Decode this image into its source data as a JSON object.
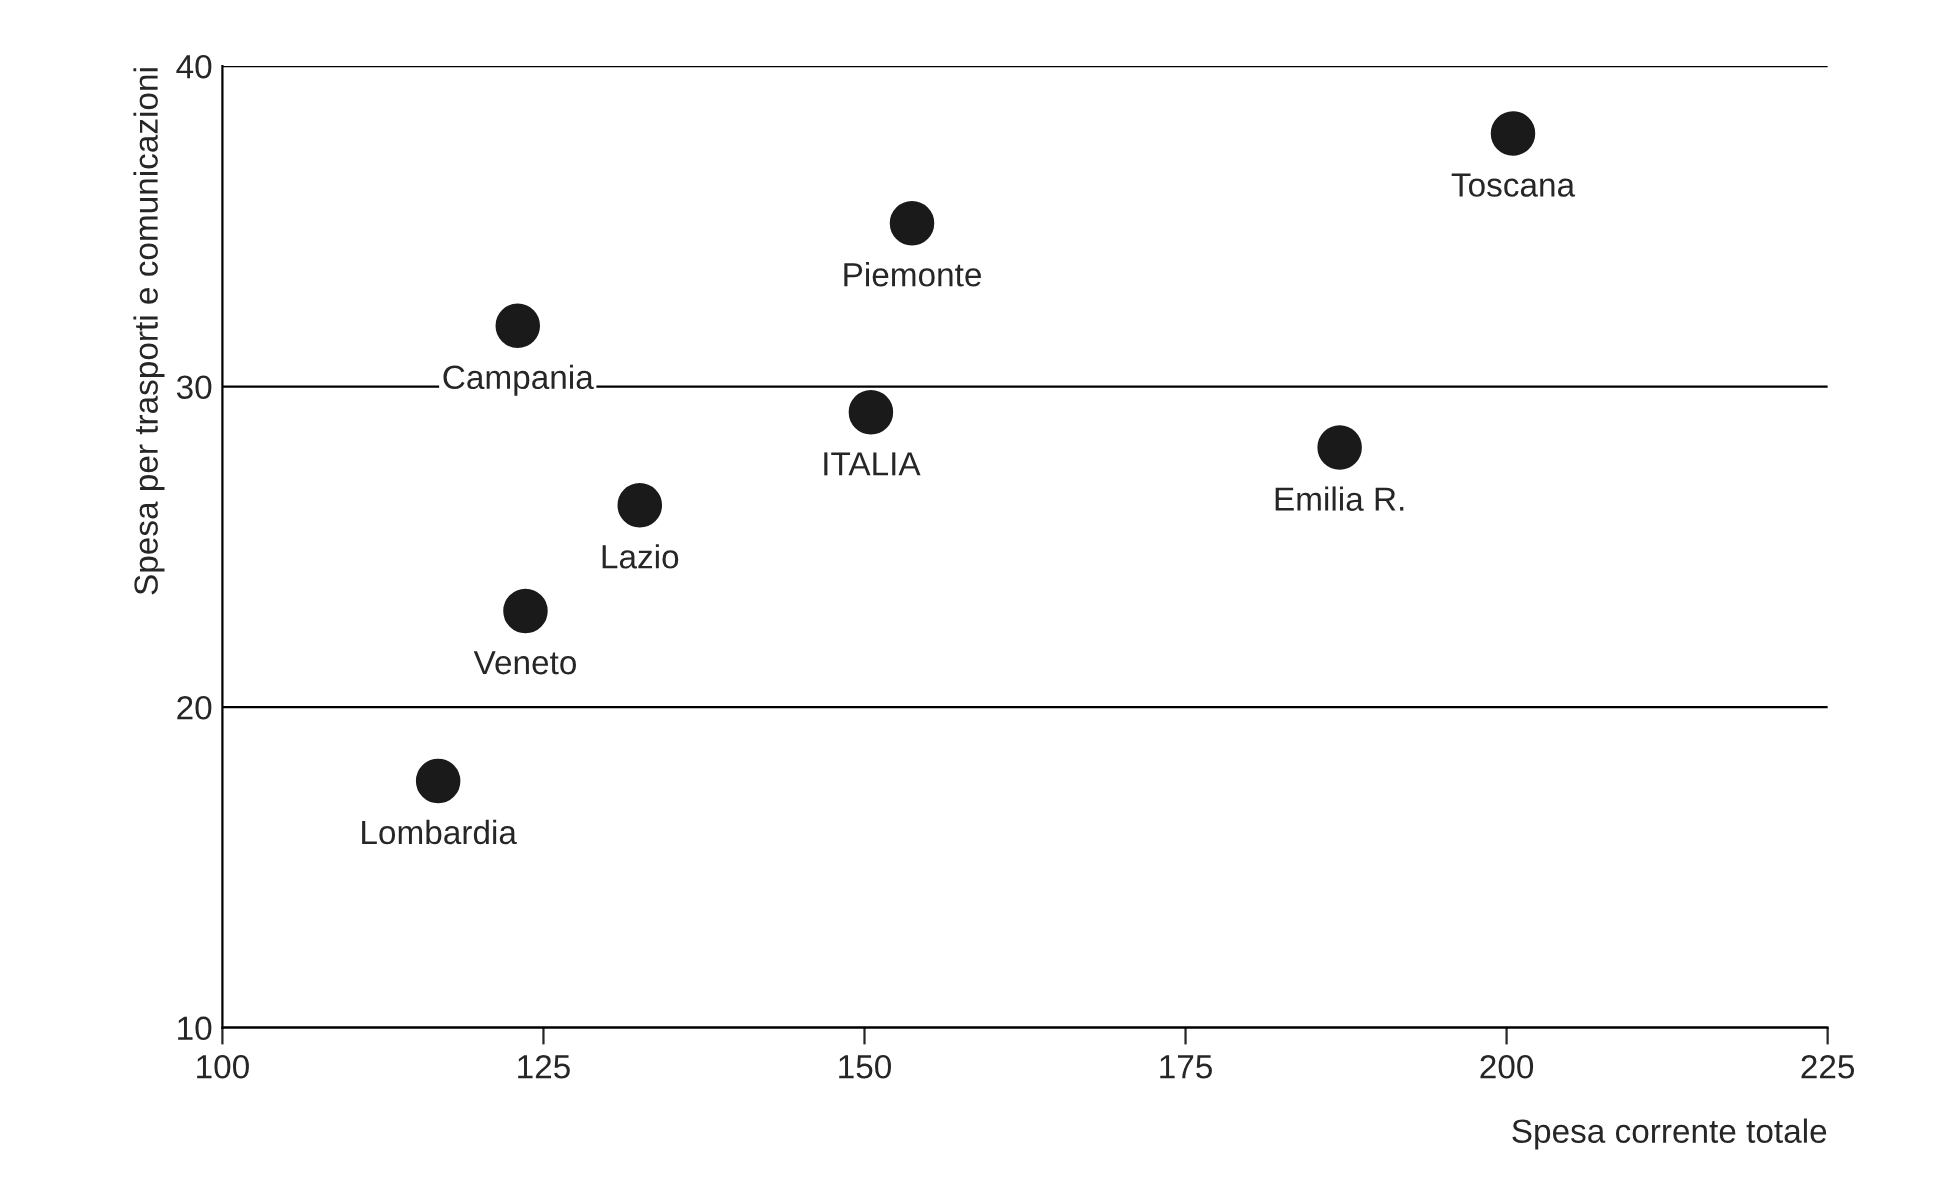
{
  "chart_data": {
    "type": "scatter",
    "xlabel": "Spesa corrente totale",
    "ylabel": "Spesa per trasporti e comunicazioni",
    "x": [
      200.5,
      153.7,
      123.0,
      150.5,
      187.0,
      132.5,
      123.6,
      116.8
    ],
    "series": [
      {
        "color": "#1a1a1a",
        "values": [
          37.9,
          35.1,
          31.9,
          29.2,
          28.1,
          26.3,
          23.0,
          17.7
        ]
      }
    ],
    "annotations": [
      {
        "text": "Toscana",
        "x": 200.5,
        "y": 37.9
      },
      {
        "text": "Piemonte",
        "x": 153.7,
        "y": 35.1
      },
      {
        "text": "Campania",
        "x": 123.0,
        "y": 31.9
      },
      {
        "text": "ITALIA",
        "x": 150.5,
        "y": 29.2
      },
      {
        "text": "Emilia R.",
        "x": 187.0,
        "y": 28.1
      },
      {
        "text": "Lazio",
        "x": 132.5,
        "y": 26.3
      },
      {
        "text": "Veneto",
        "x": 123.6,
        "y": 23.0
      },
      {
        "text": "Lombardia",
        "x": 116.8,
        "y": 17.7
      }
    ],
    "xlim": [
      100,
      225
    ],
    "xticks": [
      100,
      125,
      150,
      175,
      200,
      225
    ],
    "ylim": [
      10,
      40
    ],
    "yticks": [
      10,
      20,
      30,
      40
    ],
    "grid": "y",
    "marker": "circle"
  }
}
